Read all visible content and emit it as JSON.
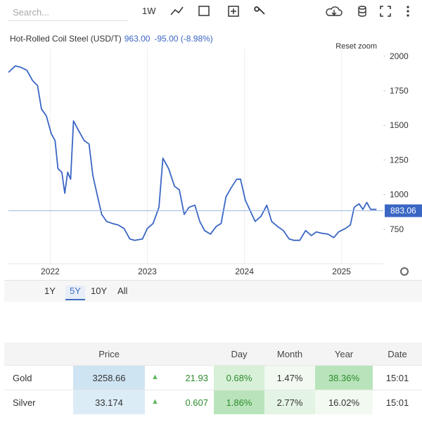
{
  "toolbar": {
    "search": "Search...",
    "interval": "1W"
  },
  "chart_data": {
    "type": "line",
    "title": "Hot-Rolled Coil Steel (USD/T)",
    "price": "963.00",
    "change": "-95.00 (-8.98%)",
    "reset_zoom": "Reset zoom",
    "last_label": {
      "value": 883.06,
      "label": "883.06"
    },
    "x": [
      2021.57,
      2021.64,
      2021.7,
      2021.76,
      2021.82,
      2021.87,
      2021.91,
      2021.96,
      2022.01,
      2022.05,
      2022.08,
      2022.12,
      2022.15,
      2022.18,
      2022.21,
      2022.24,
      2022.29,
      2022.35,
      2022.4,
      2022.44,
      2022.48,
      2022.53,
      2022.58,
      2022.64,
      2022.7,
      2022.76,
      2022.82,
      2022.87,
      2022.95,
      2023.0,
      2023.06,
      2023.12,
      2023.16,
      2023.22,
      2023.28,
      2023.33,
      2023.38,
      2023.43,
      2023.49,
      2023.54,
      2023.59,
      2023.65,
      2023.71,
      2023.76,
      2023.81,
      2023.86,
      2023.92,
      2023.96,
      2024.01,
      2024.06,
      2024.11,
      2024.17,
      2024.23,
      2024.28,
      2024.34,
      2024.4,
      2024.46,
      2024.51,
      2024.57,
      2024.63,
      2024.69,
      2024.74,
      2024.8,
      2024.86,
      2024.92,
      2024.97,
      2025.04,
      2025.09,
      2025.13,
      2025.18,
      2025.22,
      2025.26,
      2025.3,
      2025.36
    ],
    "series": [
      {
        "name": "Hot-Rolled Coil Steel",
        "color": "#3a66c4",
        "values": [
          1883,
          1929,
          1919,
          1898,
          1822,
          1787,
          1619,
          1568,
          1441,
          1390,
          1187,
          1161,
          1009,
          1161,
          1111,
          1532,
          1466,
          1390,
          1365,
          1136,
          1009,
          857,
          806,
          791,
          780,
          755,
          679,
          669,
          679,
          755,
          791,
          908,
          1263,
          1187,
          1060,
          1034,
          857,
          908,
          923,
          806,
          740,
          714,
          770,
          791,
          984,
          1045,
          1111,
          1111,
          958,
          882,
          806,
          842,
          923,
          806,
          770,
          740,
          679,
          669,
          669,
          740,
          704,
          730,
          720,
          714,
          689,
          730,
          755,
          780,
          908,
          933,
          893,
          943,
          893,
          893
        ]
      }
    ],
    "xlim": [
      2021.57,
      2025.43
    ],
    "xticks": [
      2022,
      2023,
      2024,
      2025
    ],
    "ylim": [
      500,
      2050
    ],
    "yticks": [
      750,
      1000,
      1250,
      1500,
      1750,
      2000
    ],
    "grid": "x"
  },
  "ranges": {
    "items": [
      "1Y",
      "5Y",
      "10Y",
      "All"
    ],
    "active": "5Y"
  },
  "table": {
    "headers": [
      "Price",
      "Day",
      "Month",
      "Year",
      "Date"
    ],
    "rows": [
      [
        "Gold",
        "3258.66",
        "21.93",
        "0.68%",
        "1.47%",
        "38.36%",
        "15:01"
      ],
      [
        "Silver",
        "33.174",
        "0.607",
        "1.86%",
        "2.77%",
        "16.02%",
        "15:01"
      ]
    ]
  }
}
